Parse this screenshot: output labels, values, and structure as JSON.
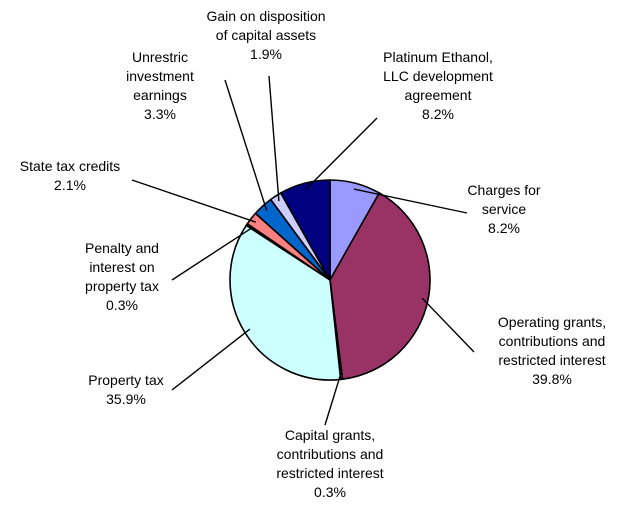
{
  "chart_data": {
    "type": "pie",
    "title": "",
    "slices": [
      {
        "label": [
          "Charges for",
          "service"
        ],
        "pct": "8.2%",
        "value": 8.2,
        "color": "#9999ff"
      },
      {
        "label": [
          "Operating grants,",
          "contributions and",
          "restricted interest"
        ],
        "pct": "39.8%",
        "value": 39.8,
        "color": "#993366"
      },
      {
        "label": [
          "Capital grants,",
          "contributions and",
          "restricted interest"
        ],
        "pct": "0.3%",
        "value": 0.3,
        "color": "#ffffcc"
      },
      {
        "label": [
          "Property tax"
        ],
        "pct": "35.9%",
        "value": 35.9,
        "color": "#ccffff"
      },
      {
        "label": [
          "Penalty and",
          "interest on",
          "property tax"
        ],
        "pct": "0.3%",
        "value": 0.3,
        "color": "#660066"
      },
      {
        "label": [
          "State tax credits"
        ],
        "pct": "2.1%",
        "value": 2.1,
        "color": "#ff8080"
      },
      {
        "label": [
          "Unrestric",
          "investment",
          "earnings"
        ],
        "pct": "3.3%",
        "value": 3.3,
        "color": "#0066cc"
      },
      {
        "label": [
          "Gain on disposition",
          "of capital assets"
        ],
        "pct": "1.9%",
        "value": 1.9,
        "color": "#ccccff"
      },
      {
        "label": [
          "Platinum Ethanol,",
          "LLC development",
          "agreement"
        ],
        "pct": "8.2%",
        "value": 8.2,
        "color": "#000080"
      }
    ]
  }
}
